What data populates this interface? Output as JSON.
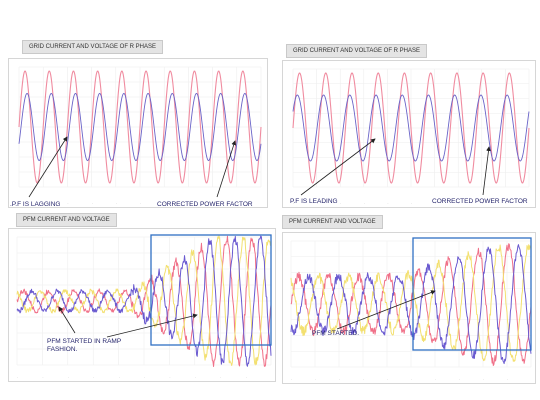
{
  "panels": {
    "tl": {
      "title": "GRID CURRENT AND VOLTAGE OF R PHASE",
      "annotations": [
        ".P.F IS LAGGING",
        "CORRECTED POWER FACTOR"
      ]
    },
    "tr": {
      "title": "GRID CURRENT AND VOLTAGE OF R PHASE",
      "annotations": [
        "P.F IS LEADING",
        "CORRECTED POWER FACTOR"
      ]
    },
    "bl": {
      "title": "PFM CURRENT AND VOLTAGE",
      "annotations": [
        "PFM STARTED IN RAMP\nFASHION."
      ]
    },
    "br": {
      "title": "PFM CURRENT AND VOLTAGE",
      "annotations": [
        "PFM STARTED."
      ]
    }
  },
  "colors": {
    "voltage": "#f08ca0",
    "current": "#6a64c8",
    "phase_red": "#f07088",
    "phase_yellow": "#f3e070",
    "phase_blue": "#6a5ad0",
    "highlight": "#2f6fc4",
    "arrow": "#222222"
  },
  "chart_data": [
    {
      "type": "line",
      "title": "GRID CURRENT AND VOLTAGE OF R PHASE",
      "cycles": 10,
      "series": [
        {
          "key": "voltage",
          "amplitude": 1.0,
          "phase_deg": 0
        },
        {
          "key": "current",
          "amplitude": 0.6,
          "phase_deg": -30
        }
      ]
    },
    {
      "type": "line",
      "title": "GRID CURRENT AND VOLTAGE OF R PHASE",
      "cycles": 9,
      "series": [
        {
          "key": "voltage",
          "amplitude": 1.0,
          "phase_deg": 0
        },
        {
          "key": "current",
          "amplitude": 0.6,
          "phase_deg": 30
        }
      ]
    },
    {
      "type": "line",
      "title": "PFM CURRENT AND VOLTAGE",
      "cycles": 10,
      "ramp": true,
      "series": [
        {
          "key": "phase_red",
          "phase_deg": 0
        },
        {
          "key": "phase_yellow",
          "phase_deg": 120
        },
        {
          "key": "phase_blue",
          "phase_deg": 240
        }
      ]
    },
    {
      "type": "line",
      "title": "PFM CURRENT AND VOLTAGE",
      "cycles": 8,
      "ramp": false,
      "series": [
        {
          "key": "phase_red",
          "phase_deg": 0
        },
        {
          "key": "phase_yellow",
          "phase_deg": 120
        },
        {
          "key": "phase_blue",
          "phase_deg": 240
        }
      ]
    }
  ]
}
